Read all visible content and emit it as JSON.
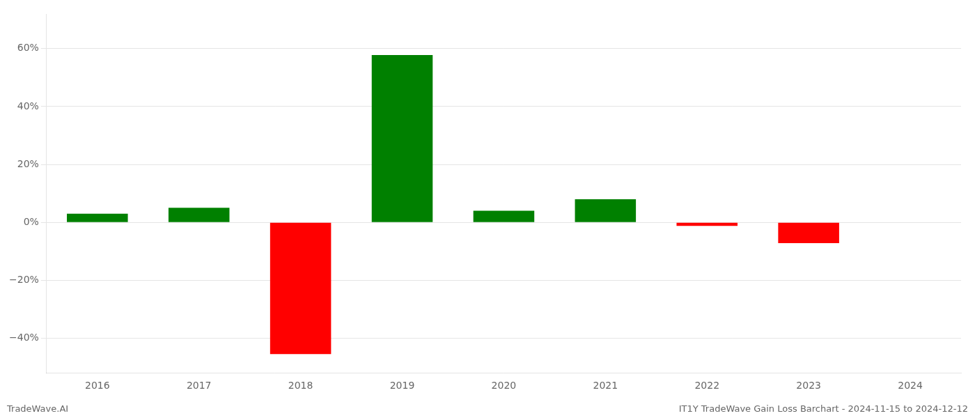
{
  "chart_data": {
    "type": "bar",
    "categories": [
      "2016",
      "2017",
      "2018",
      "2019",
      "2020",
      "2021",
      "2022",
      "2023",
      "2024"
    ],
    "values": [
      0.03,
      0.05,
      -0.455,
      0.578,
      0.04,
      0.08,
      -0.012,
      -0.072,
      null
    ],
    "colors": [
      "#008000",
      "#008000",
      "#ff0000",
      "#008000",
      "#008000",
      "#008000",
      "#ff0000",
      "#ff0000",
      null
    ],
    "ylim": [
      -0.52,
      0.72
    ],
    "yticks": [
      {
        "value": -0.4,
        "label": "−40%"
      },
      {
        "value": -0.2,
        "label": "−20%"
      },
      {
        "value": 0.0,
        "label": "0%"
      },
      {
        "value": 0.2,
        "label": "20%"
      },
      {
        "value": 0.4,
        "label": "40%"
      },
      {
        "value": 0.6,
        "label": "60%"
      }
    ],
    "grid": true,
    "annotations": [
      "TradeWave.AI",
      "IT1Y TradeWave Gain Loss Barchart - 2024-11-15 to 2024-12-12"
    ]
  }
}
